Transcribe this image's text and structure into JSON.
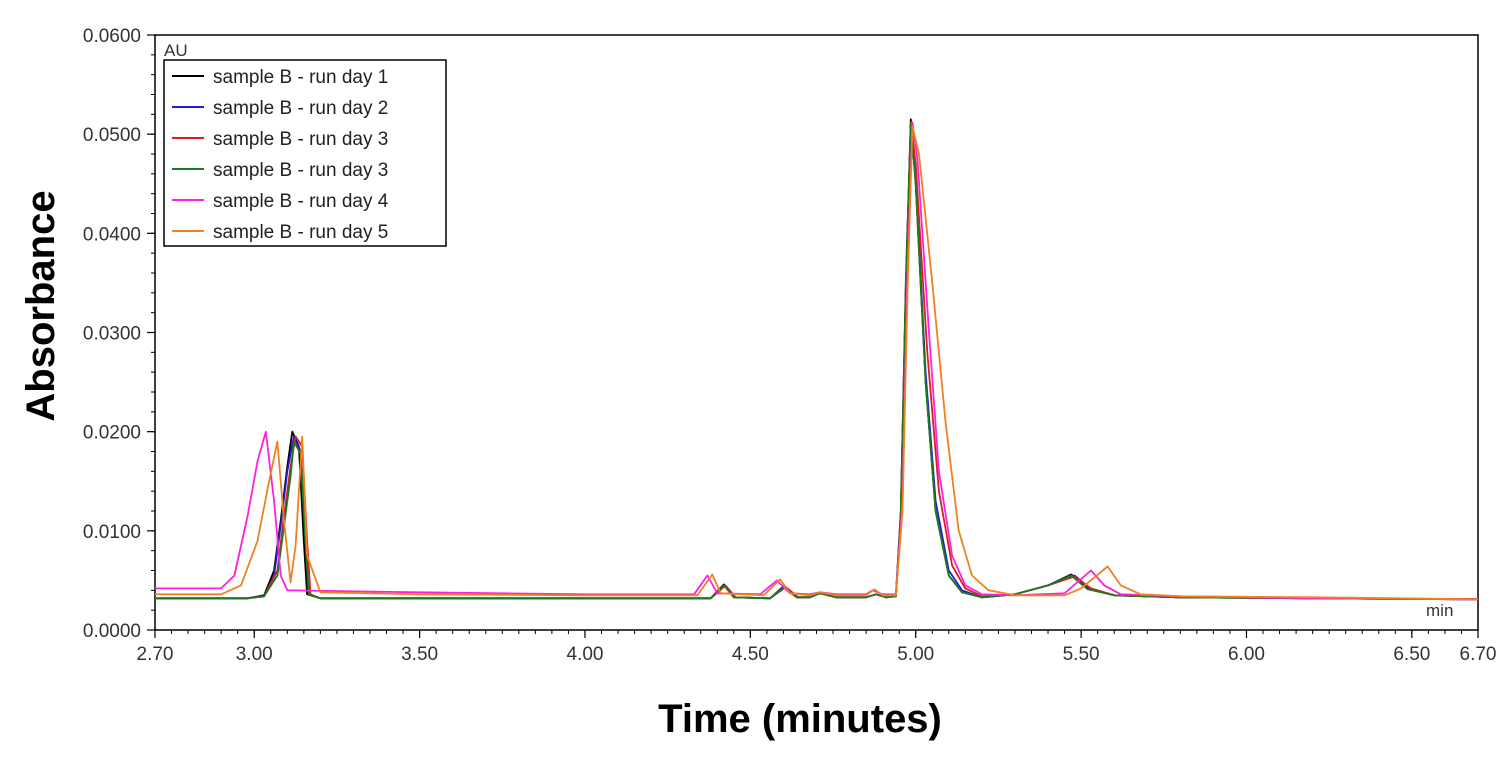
{
  "chart_data": {
    "type": "line",
    "xlabel": "Time (minutes)",
    "ylabel": "Absorbance",
    "y_unit": "AU",
    "x_unit": "min",
    "xlim": [
      2.7,
      6.7
    ],
    "ylim": [
      0.0,
      0.06
    ],
    "x_ticks": [
      "2.70",
      "3.00",
      "3.50",
      "4.00",
      "4.50",
      "5.00",
      "5.50",
      "6.00",
      "6.50",
      "6.70"
    ],
    "x_tick_values": [
      2.7,
      3.0,
      3.5,
      4.0,
      4.5,
      5.0,
      5.5,
      6.0,
      6.5,
      6.7
    ],
    "y_ticks": [
      "0.0000",
      "0.0100",
      "0.0200",
      "0.0300",
      "0.0400",
      "0.0500",
      "0.0600"
    ],
    "y_tick_values": [
      0.0,
      0.01,
      0.02,
      0.03,
      0.04,
      0.05,
      0.06
    ],
    "legend_position": "top-left",
    "grid": false,
    "series": [
      {
        "name": "sample B - run day 1",
        "color": "#000000",
        "x": [
          2.7,
          2.98,
          3.03,
          3.06,
          3.08,
          3.1,
          3.115,
          3.135,
          3.15,
          3.16,
          3.2,
          3.5,
          4.0,
          4.38,
          4.42,
          4.45,
          4.56,
          4.6,
          4.64,
          4.68,
          4.71,
          4.76,
          4.85,
          4.88,
          4.91,
          4.94,
          4.955,
          4.97,
          4.985,
          5.0,
          5.03,
          5.06,
          5.1,
          5.14,
          5.2,
          5.3,
          5.4,
          5.47,
          5.52,
          5.6,
          5.8,
          6.2,
          6.7
        ],
        "y": [
          0.0032,
          0.0032,
          0.0035,
          0.006,
          0.011,
          0.0165,
          0.02,
          0.0185,
          0.009,
          0.0036,
          0.0032,
          0.0032,
          0.0032,
          0.0032,
          0.0046,
          0.0033,
          0.0032,
          0.0044,
          0.0033,
          0.0033,
          0.0037,
          0.0033,
          0.0033,
          0.0036,
          0.0033,
          0.0034,
          0.012,
          0.035,
          0.0515,
          0.045,
          0.025,
          0.012,
          0.0055,
          0.0038,
          0.0033,
          0.0036,
          0.0045,
          0.0056,
          0.0042,
          0.0035,
          0.0033,
          0.0032,
          0.0031
        ]
      },
      {
        "name": "sample B - run day 2",
        "color": "#1f1fd6",
        "x": [
          2.7,
          2.98,
          3.03,
          3.06,
          3.08,
          3.1,
          3.12,
          3.14,
          3.155,
          3.165,
          3.2,
          3.5,
          4.0,
          4.38,
          4.425,
          4.455,
          4.56,
          4.605,
          4.645,
          4.68,
          4.71,
          4.76,
          4.85,
          4.88,
          4.91,
          4.94,
          4.955,
          4.97,
          4.985,
          5.0,
          5.03,
          5.06,
          5.1,
          5.14,
          5.2,
          5.3,
          5.4,
          5.48,
          5.53,
          5.6,
          5.8,
          6.2,
          6.7
        ],
        "y": [
          0.0032,
          0.0032,
          0.0034,
          0.0055,
          0.0105,
          0.016,
          0.0195,
          0.018,
          0.009,
          0.0036,
          0.0032,
          0.0032,
          0.0032,
          0.0032,
          0.0045,
          0.0033,
          0.0032,
          0.0043,
          0.0033,
          0.0033,
          0.0037,
          0.0033,
          0.0033,
          0.0036,
          0.0033,
          0.0034,
          0.0115,
          0.034,
          0.051,
          0.0455,
          0.026,
          0.013,
          0.006,
          0.004,
          0.0033,
          0.0036,
          0.0045,
          0.0055,
          0.0041,
          0.0035,
          0.0033,
          0.0032,
          0.0031
        ]
      },
      {
        "name": "sample B - run day 3",
        "color": "#d62020",
        "x": [
          2.7,
          2.98,
          3.03,
          3.07,
          3.09,
          3.11,
          3.125,
          3.145,
          3.16,
          3.17,
          3.2,
          3.5,
          4.0,
          4.38,
          4.425,
          4.455,
          4.56,
          4.605,
          4.645,
          4.68,
          4.71,
          4.76,
          4.85,
          4.88,
          4.91,
          4.94,
          4.955,
          4.97,
          4.985,
          5.0,
          5.035,
          5.07,
          5.11,
          5.15,
          5.2,
          5.3,
          5.4,
          5.48,
          5.53,
          5.6,
          5.8,
          6.2,
          6.7
        ],
        "y": [
          0.0032,
          0.0032,
          0.0034,
          0.006,
          0.0115,
          0.0165,
          0.0195,
          0.0185,
          0.009,
          0.0036,
          0.0032,
          0.0032,
          0.0032,
          0.0032,
          0.0045,
          0.0033,
          0.0032,
          0.0044,
          0.0033,
          0.0033,
          0.0037,
          0.0033,
          0.0033,
          0.0036,
          0.0033,
          0.0034,
          0.0115,
          0.034,
          0.0512,
          0.047,
          0.028,
          0.014,
          0.0065,
          0.0042,
          0.0034,
          0.0036,
          0.0045,
          0.0054,
          0.0042,
          0.0035,
          0.0033,
          0.0032,
          0.0031
        ]
      },
      {
        "name": "sample B - run day 3",
        "color": "#1f7a1f",
        "x": [
          2.7,
          2.98,
          3.03,
          3.07,
          3.09,
          3.11,
          3.12,
          3.14,
          3.155,
          3.165,
          3.2,
          3.5,
          4.0,
          4.38,
          4.42,
          4.45,
          4.56,
          4.6,
          4.64,
          4.68,
          4.71,
          4.76,
          4.85,
          4.88,
          4.91,
          4.94,
          4.955,
          4.97,
          4.985,
          5.0,
          5.03,
          5.06,
          5.1,
          5.14,
          5.2,
          5.3,
          5.4,
          5.47,
          5.52,
          5.6,
          5.8,
          6.2,
          6.7
        ],
        "y": [
          0.0032,
          0.0032,
          0.0034,
          0.0055,
          0.0105,
          0.0155,
          0.019,
          0.0178,
          0.009,
          0.0036,
          0.0032,
          0.0032,
          0.0032,
          0.0032,
          0.0045,
          0.0033,
          0.0032,
          0.0043,
          0.0033,
          0.0033,
          0.0037,
          0.0033,
          0.0033,
          0.0036,
          0.0033,
          0.0034,
          0.0115,
          0.034,
          0.051,
          0.045,
          0.025,
          0.012,
          0.0055,
          0.0038,
          0.0033,
          0.0036,
          0.0045,
          0.0055,
          0.0041,
          0.0035,
          0.0033,
          0.0032,
          0.0031
        ]
      },
      {
        "name": "sample B - run day 4",
        "color": "#ff1fe0",
        "x": [
          2.7,
          2.9,
          2.94,
          2.98,
          3.01,
          3.035,
          3.06,
          3.08,
          3.1,
          3.5,
          4.0,
          4.33,
          4.37,
          4.4,
          4.53,
          4.58,
          4.62,
          4.68,
          4.71,
          4.76,
          4.85,
          4.87,
          4.9,
          4.94,
          4.96,
          4.975,
          4.99,
          5.005,
          5.04,
          5.07,
          5.11,
          5.15,
          5.2,
          5.3,
          5.45,
          5.53,
          5.57,
          5.62,
          5.8,
          6.2,
          6.7
        ],
        "y": [
          0.0042,
          0.0042,
          0.0055,
          0.0115,
          0.017,
          0.02,
          0.013,
          0.0055,
          0.004,
          0.0038,
          0.0036,
          0.0036,
          0.0055,
          0.0037,
          0.0036,
          0.005,
          0.0037,
          0.0036,
          0.0038,
          0.0036,
          0.0036,
          0.004,
          0.0036,
          0.0036,
          0.013,
          0.036,
          0.0512,
          0.0475,
          0.03,
          0.016,
          0.0075,
          0.0045,
          0.0036,
          0.0035,
          0.0037,
          0.006,
          0.0045,
          0.0036,
          0.0034,
          0.0032,
          0.0031
        ]
      },
      {
        "name": "sample B - run day 5",
        "color": "#f08020",
        "x": [
          2.7,
          2.9,
          2.96,
          3.01,
          3.045,
          3.07,
          3.09,
          3.11,
          3.125,
          3.145,
          3.16,
          3.2,
          3.5,
          4.0,
          4.34,
          4.385,
          4.41,
          4.54,
          4.59,
          4.62,
          4.68,
          4.71,
          4.76,
          4.85,
          4.875,
          4.9,
          4.94,
          4.96,
          4.975,
          4.99,
          5.01,
          5.05,
          5.09,
          5.13,
          5.17,
          5.22,
          5.3,
          5.45,
          5.5,
          5.58,
          5.62,
          5.68,
          5.8,
          6.2,
          6.7
        ],
        "y": [
          0.0036,
          0.0036,
          0.0045,
          0.009,
          0.015,
          0.019,
          0.011,
          0.0048,
          0.0085,
          0.0195,
          0.0075,
          0.0038,
          0.0036,
          0.0035,
          0.0035,
          0.0056,
          0.0037,
          0.0035,
          0.0051,
          0.0037,
          0.0035,
          0.0038,
          0.0035,
          0.0035,
          0.0041,
          0.0035,
          0.0035,
          0.012,
          0.034,
          0.0508,
          0.048,
          0.035,
          0.021,
          0.01,
          0.0055,
          0.004,
          0.0035,
          0.0035,
          0.0042,
          0.0064,
          0.0045,
          0.0036,
          0.0034,
          0.0033,
          0.0031
        ]
      }
    ]
  }
}
